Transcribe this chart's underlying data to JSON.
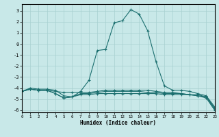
{
  "xlabel": "Humidex (Indice chaleur)",
  "xlim": [
    0,
    23
  ],
  "ylim": [
    -6.2,
    3.6
  ],
  "xticks": [
    0,
    1,
    2,
    3,
    4,
    5,
    6,
    7,
    8,
    9,
    10,
    11,
    12,
    13,
    14,
    15,
    16,
    17,
    18,
    19,
    20,
    21,
    22,
    23
  ],
  "yticks": [
    -6,
    -5,
    -4,
    -3,
    -2,
    -1,
    0,
    1,
    2,
    3
  ],
  "background_color": "#c8e8e8",
  "grid_color": "#a8d0d0",
  "line_color": "#1a6e6e",
  "curves": [
    [
      -4.3,
      -4.0,
      -4.1,
      -4.1,
      -4.2,
      -4.7,
      -4.8,
      -4.3,
      -3.3,
      -0.6,
      -0.5,
      1.9,
      2.1,
      3.1,
      2.7,
      1.2,
      -1.6,
      -3.8,
      -4.2,
      -4.2,
      -4.3,
      -4.5,
      -4.7,
      -5.7
    ],
    [
      -4.3,
      -4.1,
      -4.2,
      -4.2,
      -4.3,
      -4.4,
      -4.4,
      -4.4,
      -4.4,
      -4.3,
      -4.2,
      -4.2,
      -4.2,
      -4.2,
      -4.2,
      -4.2,
      -4.3,
      -4.4,
      -4.4,
      -4.5,
      -4.6,
      -4.6,
      -4.8,
      -5.8
    ],
    [
      -4.3,
      -4.1,
      -4.2,
      -4.2,
      -4.5,
      -4.9,
      -4.8,
      -4.5,
      -4.5,
      -4.4,
      -4.3,
      -4.3,
      -4.3,
      -4.3,
      -4.3,
      -4.4,
      -4.4,
      -4.5,
      -4.5,
      -4.5,
      -4.6,
      -4.7,
      -4.8,
      -5.9
    ],
    [
      -4.3,
      -4.1,
      -4.2,
      -4.2,
      -4.5,
      -4.9,
      -4.8,
      -4.6,
      -4.6,
      -4.5,
      -4.5,
      -4.5,
      -4.5,
      -4.5,
      -4.5,
      -4.5,
      -4.5,
      -4.6,
      -4.6,
      -4.6,
      -4.6,
      -4.7,
      -4.9,
      -6.0
    ]
  ]
}
